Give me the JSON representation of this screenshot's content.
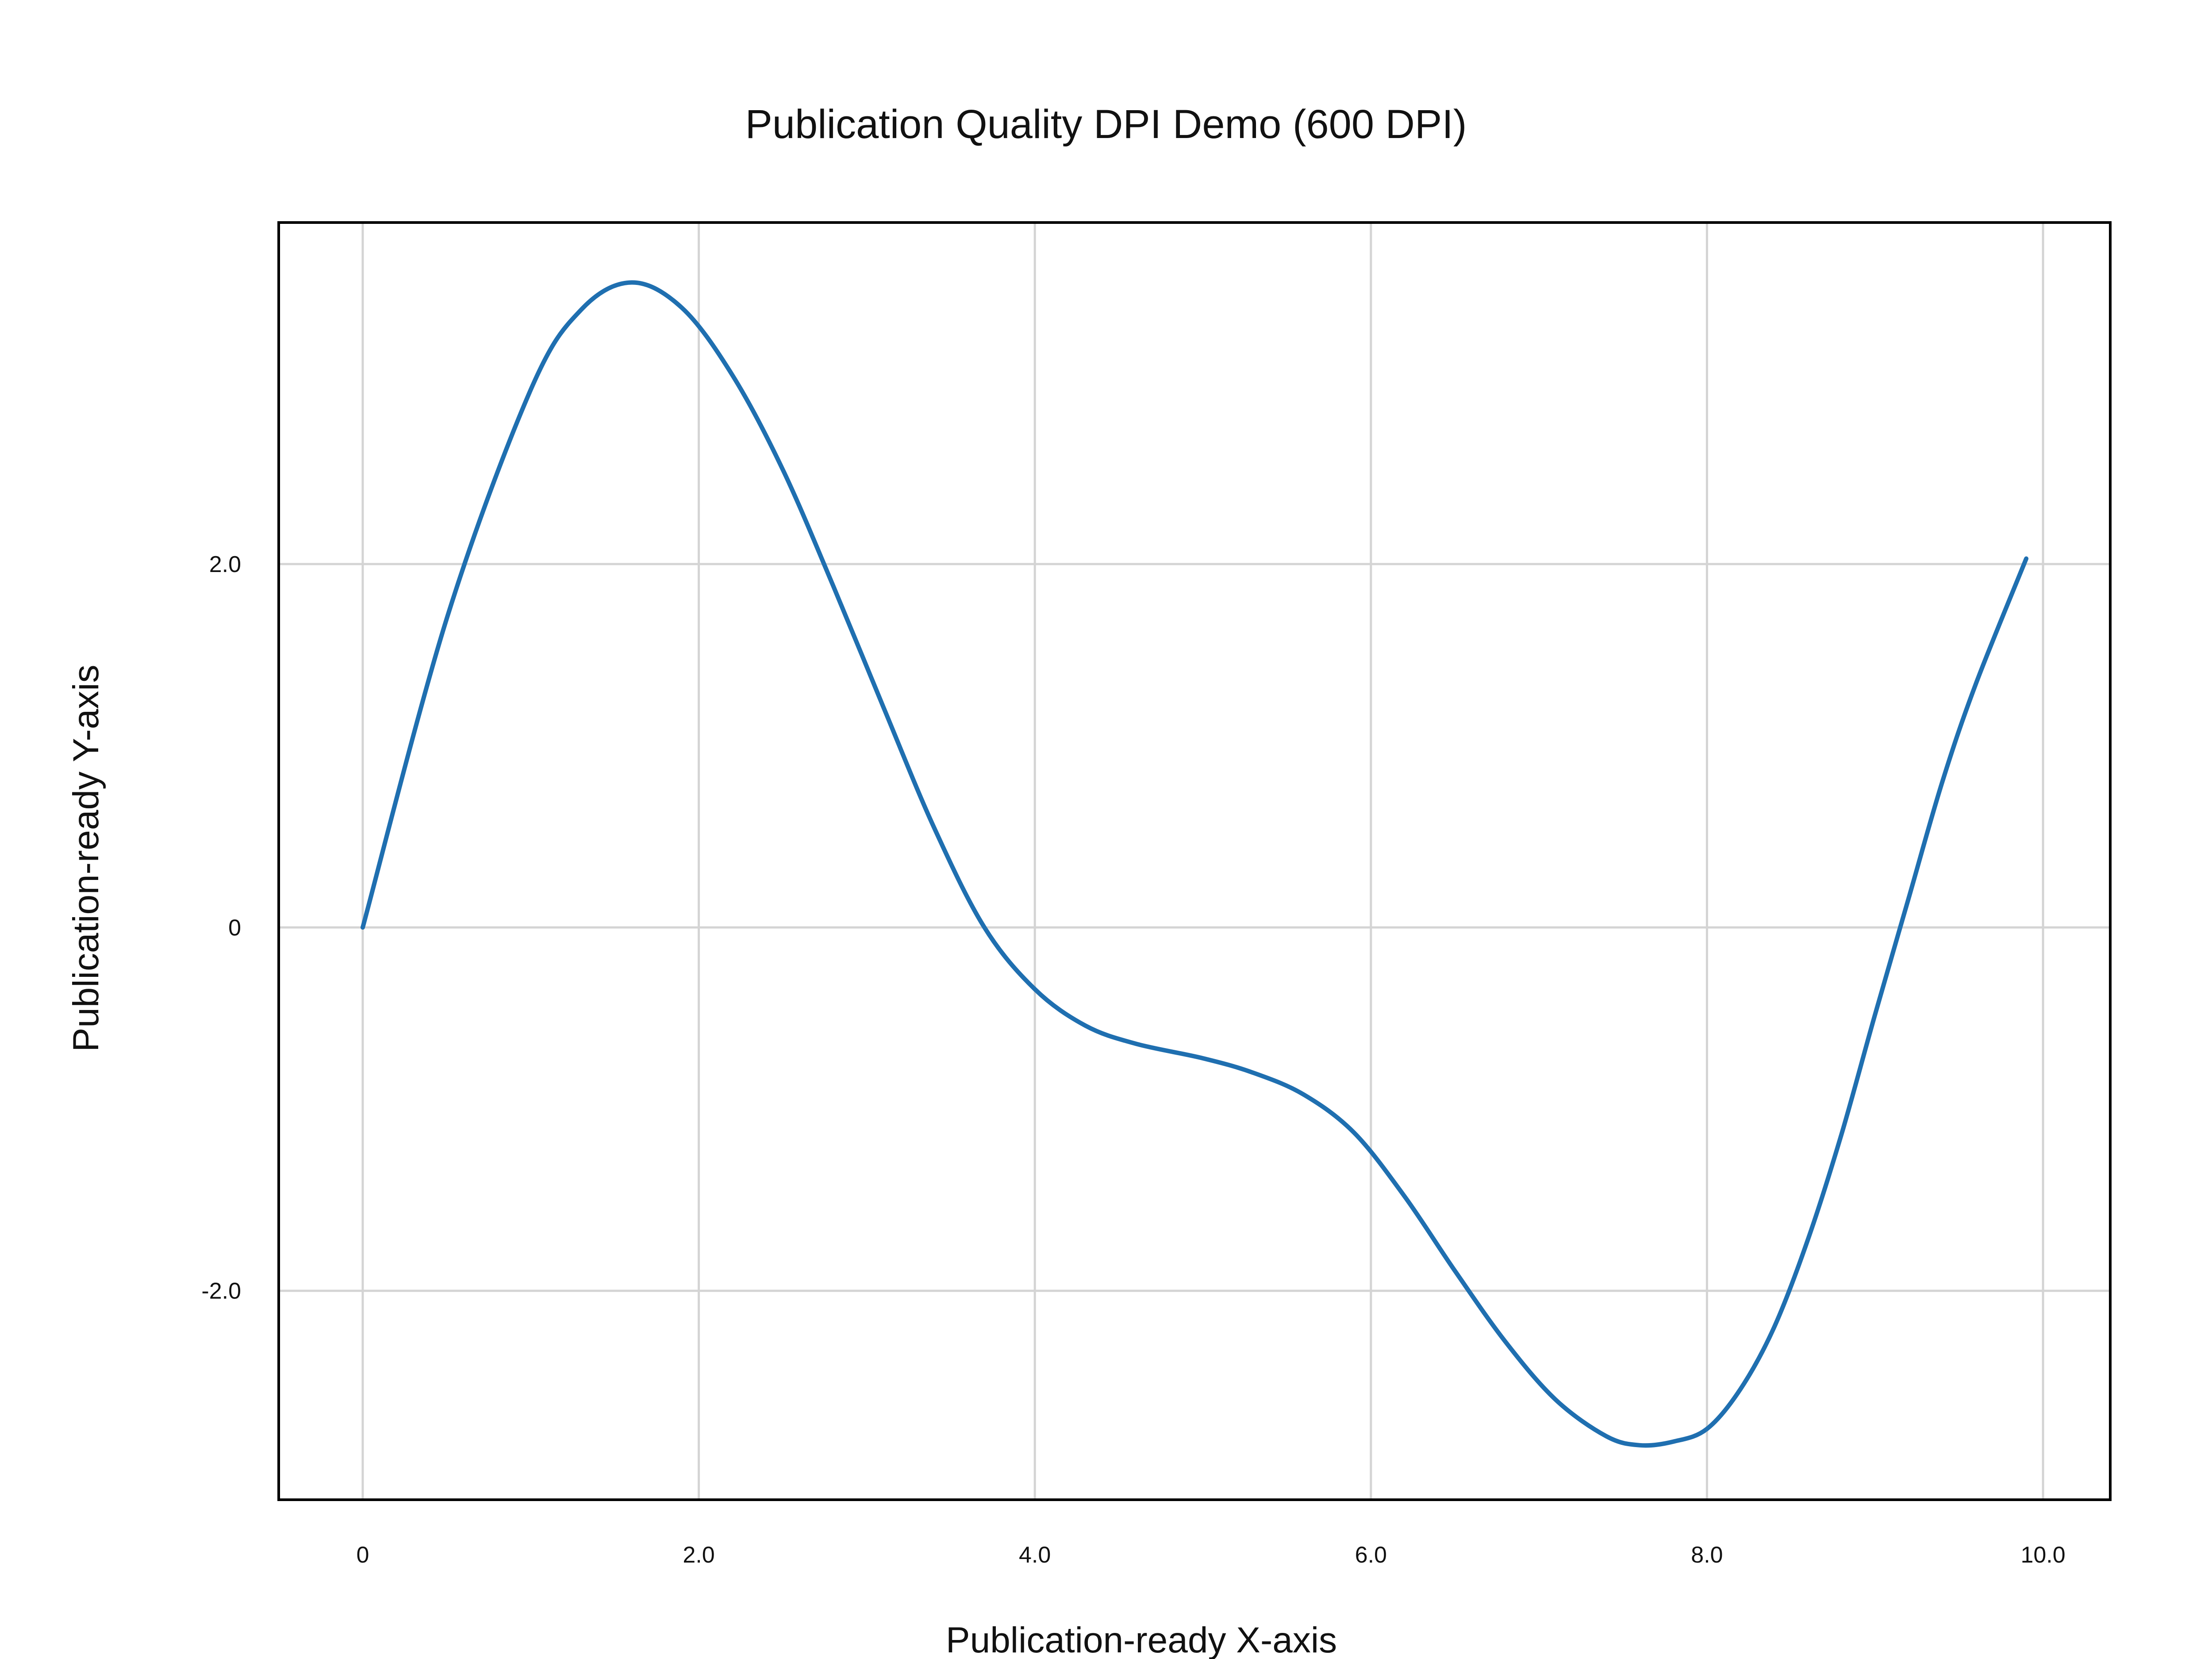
{
  "chart_data": {
    "type": "line",
    "title": "Publication Quality DPI Demo (600 DPI)",
    "xlabel": "Publication-ready X-axis",
    "ylabel": "Publication-ready Y-axis",
    "xlim": [
      -0.5,
      10.4
    ],
    "ylim": [
      -3.15,
      3.88
    ],
    "xticks": [
      0,
      2,
      4,
      6,
      8,
      10
    ],
    "xtick_labels": [
      "0",
      "2.0",
      "4.0",
      "6.0",
      "8.0",
      "10.0"
    ],
    "yticks": [
      -2,
      0,
      2
    ],
    "ytick_labels": [
      "-2.0",
      "0",
      "2.0"
    ],
    "grid": true,
    "legend": "none",
    "series": [
      {
        "color": "#1f6fb0",
        "x": [
          0,
          0.5,
          1.0,
          1.3,
          1.6,
          1.9,
          2.2,
          2.5,
          2.8,
          3.1,
          3.4,
          3.7,
          4.0,
          4.3,
          4.6,
          5.0,
          5.3,
          5.6,
          5.9,
          6.2,
          6.5,
          6.8,
          7.1,
          7.4,
          7.6,
          7.8,
          8.0,
          8.2,
          8.4,
          8.6,
          8.8,
          9.0,
          9.2,
          9.4,
          9.6,
          9.9
        ],
        "y": [
          0,
          1.7,
          2.96,
          3.4,
          3.55,
          3.41,
          3.04,
          2.52,
          1.88,
          1.21,
          0.55,
          0.0,
          -0.34,
          -0.54,
          -0.64,
          -0.72,
          -0.8,
          -0.92,
          -1.13,
          -1.48,
          -1.89,
          -2.28,
          -2.6,
          -2.8,
          -2.85,
          -2.83,
          -2.76,
          -2.54,
          -2.2,
          -1.72,
          -1.14,
          -0.48,
          0.16,
          0.8,
          1.34,
          2.03
        ]
      }
    ]
  }
}
